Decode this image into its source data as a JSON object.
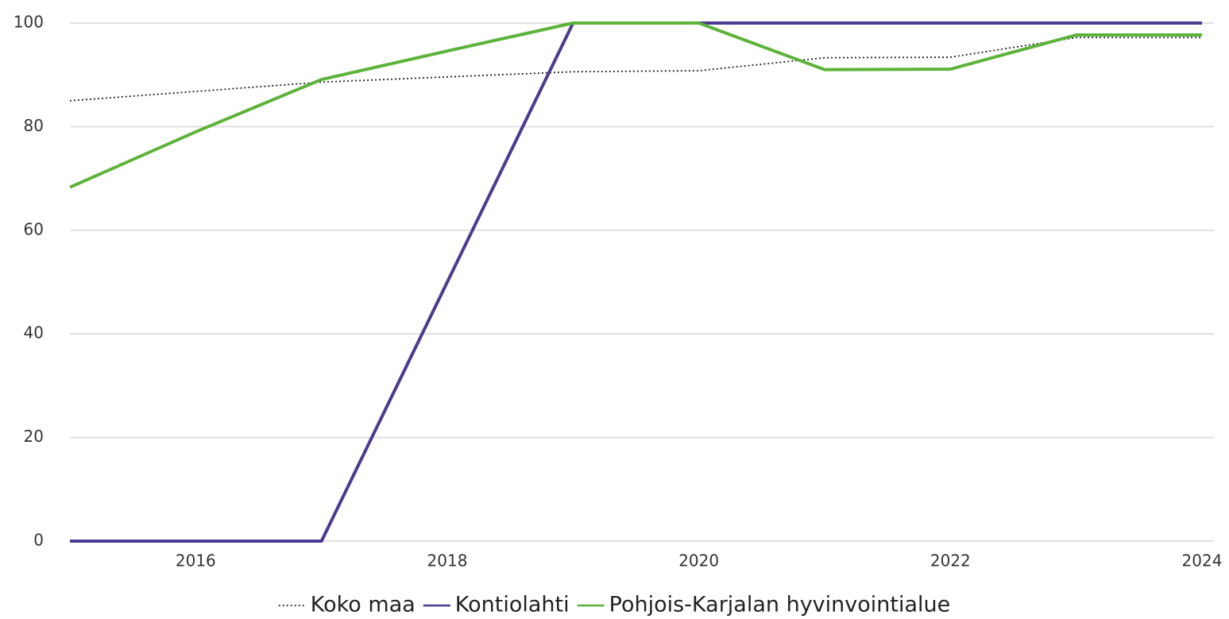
{
  "chart_data": {
    "type": "line",
    "x": [
      2015,
      2016,
      2017,
      2018,
      2019,
      2020,
      2021,
      2022,
      2023,
      2024
    ],
    "series": [
      {
        "name": "Koko maa",
        "color": "#222222",
        "style": "dotted",
        "values": [
          85.0,
          86.8,
          88.6,
          89.6,
          90.6,
          90.8,
          93.3,
          93.4,
          97.2,
          97.2
        ]
      },
      {
        "name": "Kontiolahti",
        "color": "#4b3a8f",
        "style": "solid",
        "values": [
          0,
          0,
          0,
          50,
          100,
          100,
          100,
          100,
          100,
          100
        ]
      },
      {
        "name": "Pohjois-Karjalan hyvinvointialue",
        "color": "#5db33a",
        "style": "solid",
        "values": [
          68.3,
          79.0,
          89.1,
          94.6,
          100,
          100,
          91.0,
          91.1,
          97.7,
          97.7
        ]
      }
    ],
    "xlim": [
      2015,
      2024
    ],
    "xticks": [
      2016,
      2018,
      2020,
      2022,
      2024
    ],
    "ylim": [
      0,
      100
    ],
    "yticks": [
      0,
      20,
      40,
      60,
      80,
      100
    ],
    "grid": true,
    "legend": "bottom"
  }
}
